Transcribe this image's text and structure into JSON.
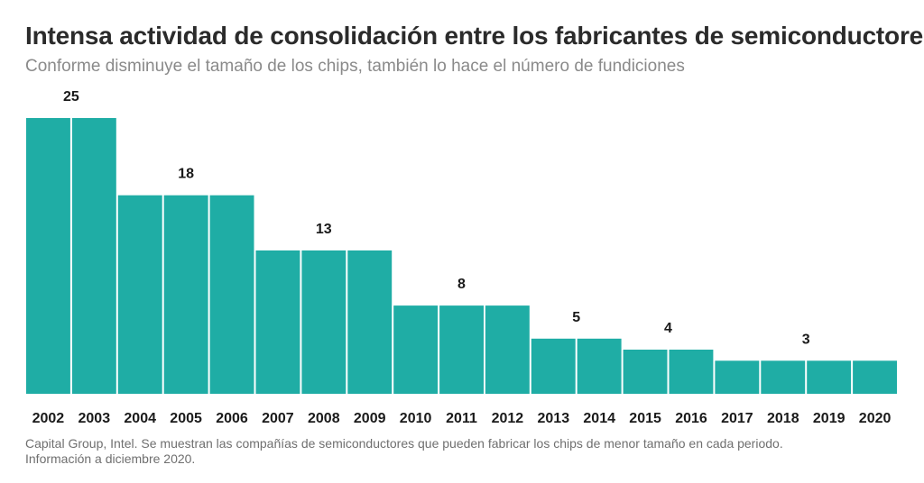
{
  "header": {
    "title": "Intensa actividad de consolidación entre los fabricantes de semiconductores",
    "subtitle": "Conforme disminuye el tamaño de los chips, también lo hace el número de fundiciones"
  },
  "footer": {
    "source_line1": "Capital Group, Intel. Se muestran las compañías de semiconductores que pueden fabricar los chips de menor tamaño en cada periodo.",
    "source_line2": "Información a diciembre 2020."
  },
  "colors": {
    "bar": "#1fada5",
    "text": "#1a1a1a"
  },
  "chart_data": {
    "type": "bar",
    "categories": [
      "2002",
      "2003",
      "2004",
      "2005",
      "2006",
      "2007",
      "2008",
      "2009",
      "2010",
      "2011",
      "2012",
      "2013",
      "2014",
      "2015",
      "2016",
      "2017",
      "2018",
      "2019",
      "2020"
    ],
    "values": [
      25,
      25,
      18,
      18,
      18,
      13,
      13,
      13,
      8,
      8,
      8,
      5,
      5,
      4,
      4,
      3,
      3,
      3,
      3
    ],
    "data_labels": [
      {
        "text": "25",
        "category_index": 0.5
      },
      {
        "text": "18",
        "category_index": 3
      },
      {
        "text": "13",
        "category_index": 6
      },
      {
        "text": "8",
        "category_index": 9
      },
      {
        "text": "5",
        "category_index": 11.5
      },
      {
        "text": "4",
        "category_index": 13.5
      },
      {
        "text": "3",
        "category_index": 16.5
      }
    ],
    "title": "Intensa actividad de consolidación entre los fabricantes de semiconductores",
    "subtitle": "Conforme disminuye el tamaño de los chips, también lo hace el número de fundiciones",
    "ylim": [
      0,
      25
    ],
    "grid": false,
    "legend": "none"
  }
}
